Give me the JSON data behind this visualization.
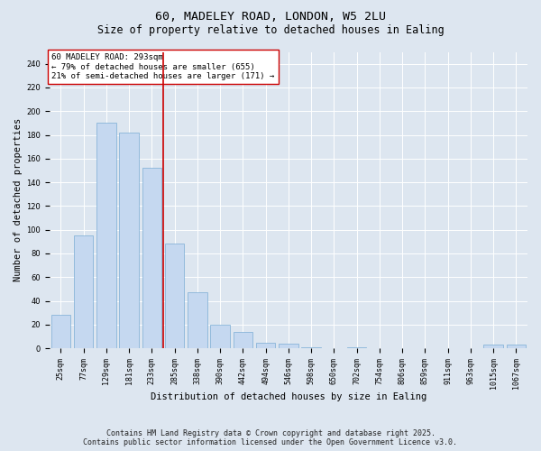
{
  "title1": "60, MADELEY ROAD, LONDON, W5 2LU",
  "title2": "Size of property relative to detached houses in Ealing",
  "xlabel": "Distribution of detached houses by size in Ealing",
  "ylabel": "Number of detached properties",
  "categories": [
    "25sqm",
    "77sqm",
    "129sqm",
    "181sqm",
    "233sqm",
    "285sqm",
    "338sqm",
    "390sqm",
    "442sqm",
    "494sqm",
    "546sqm",
    "598sqm",
    "650sqm",
    "702sqm",
    "754sqm",
    "806sqm",
    "859sqm",
    "911sqm",
    "963sqm",
    "1015sqm",
    "1067sqm"
  ],
  "values": [
    28,
    95,
    190,
    182,
    152,
    88,
    47,
    20,
    14,
    5,
    4,
    1,
    0,
    1,
    0,
    0,
    0,
    0,
    0,
    3,
    3
  ],
  "bar_color": "#c5d8f0",
  "bar_edge_color": "#7aadd4",
  "vline_color": "#cc0000",
  "vline_index": 5,
  "annotation_text": "60 MADELEY ROAD: 293sqm\n← 79% of detached houses are smaller (655)\n21% of semi-detached houses are larger (171) →",
  "annotation_box_color": "#ffffff",
  "annotation_box_edge": "#cc0000",
  "ylim": [
    0,
    250
  ],
  "yticks": [
    0,
    20,
    40,
    60,
    80,
    100,
    120,
    140,
    160,
    180,
    200,
    220,
    240
  ],
  "bg_color": "#dde6f0",
  "plot_bg_color": "#dde6f0",
  "footer": "Contains HM Land Registry data © Crown copyright and database right 2025.\nContains public sector information licensed under the Open Government Licence v3.0.",
  "title_fontsize": 9.5,
  "subtitle_fontsize": 8.5,
  "annotation_fontsize": 6.5,
  "footer_fontsize": 6,
  "tick_fontsize": 6,
  "axis_label_fontsize": 7.5
}
